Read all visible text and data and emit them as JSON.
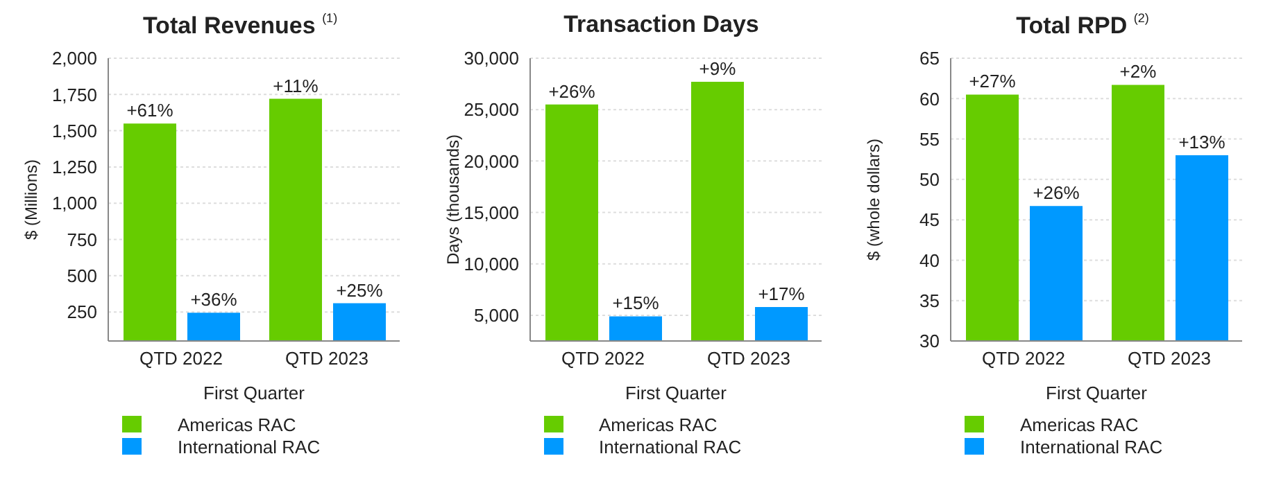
{
  "chart_data": [
    {
      "type": "bar",
      "title": "Total Revenues $^{(1)}$",
      "xlabel": "First Quarter",
      "ylabel": "$ (Millions)",
      "categories": [
        "QTD 2022",
        "QTD 2023"
      ],
      "series": [
        {
          "name": "Americas RAC",
          "color": "#66cc00",
          "values": [
            1550,
            1720
          ]
        },
        {
          "name": "International RAC",
          "color": "#0099ff",
          "values": [
            245,
            310
          ]
        }
      ],
      "annotations": [
        {
          "text": "+61%",
          "x": "QTD 2022",
          "y": 1550
        },
        {
          "text": "+11%",
          "x": "QTD 2023",
          "y": 1720
        },
        {
          "text": "+36%",
          "x": "QTD 2022",
          "y": 245
        },
        {
          "text": "+25%",
          "x": "QTD 2023",
          "y": 310
        }
      ],
      "ylim": [
        50,
        2000
      ],
      "yticks": [
        250,
        500,
        750,
        {
          "value": 1000,
          "label": "1,000"
        },
        {
          "value": 1250,
          "label": "1,250"
        },
        {
          "value": 1500,
          "label": "1,500"
        },
        {
          "value": 1750,
          "label": "1,750"
        },
        {
          "value": 2000,
          "label": "2,000"
        }
      ],
      "grid": "y",
      "legend": "bottom"
    },
    {
      "type": "bar",
      "title": "Transaction Days",
      "xlabel": "First Quarter",
      "ylabel": "Days (thousands)",
      "categories": [
        "QTD 2022",
        "QTD 2023"
      ],
      "series": [
        {
          "name": "Americas RAC",
          "color": "#66cc00",
          "values": [
            25500,
            27700
          ]
        },
        {
          "name": "International RAC",
          "color": "#0099ff",
          "values": [
            4900,
            5800
          ]
        }
      ],
      "annotations": [
        {
          "text": "+26%",
          "x": "QTD 2022",
          "y": 25500
        },
        {
          "text": "+9%",
          "x": "QTD 2023",
          "y": 27700
        },
        {
          "text": "+15%",
          "x": "QTD 2022",
          "y": 4900
        },
        {
          "text": "+17%",
          "x": "QTD 2023",
          "y": 5800
        }
      ],
      "ylim": [
        2500,
        30000
      ],
      "yticks": [
        {
          "value": 5000,
          "label": "5,000"
        },
        {
          "value": 10000,
          "label": "10,000"
        },
        {
          "value": 15000,
          "label": "15,000"
        },
        {
          "value": 20000,
          "label": "20,000"
        },
        {
          "value": 25000,
          "label": "25,000"
        },
        {
          "value": 30000,
          "label": "30,000"
        }
      ],
      "grid": "y",
      "legend": "bottom"
    },
    {
      "type": "bar",
      "title": "Total RPD $^{(2)}$",
      "xlabel": "First Quarter",
      "ylabel": "$ (whole dollars)",
      "categories": [
        "QTD 2022",
        "QTD 2023"
      ],
      "series": [
        {
          "name": "Americas RAC",
          "color": "#66cc00",
          "values": [
            60.5,
            61.7
          ]
        },
        {
          "name": "International RAC",
          "color": "#0099ff",
          "values": [
            46.7,
            53.0
          ]
        }
      ],
      "annotations": [
        {
          "text": "+27%",
          "x": "QTD 2022",
          "y": 60.5
        },
        {
          "text": "+2%",
          "x": "QTD 2023",
          "y": 61.7
        },
        {
          "text": "+26%",
          "x": "QTD 2022",
          "y": 46.7
        },
        {
          "text": "+13%",
          "x": "QTD 2023",
          "y": 53.0
        }
      ],
      "ylim": [
        30,
        65
      ],
      "yticks": [
        30,
        35,
        40,
        45,
        50,
        55,
        60,
        65
      ],
      "grid": "y",
      "legend": "bottom"
    }
  ]
}
